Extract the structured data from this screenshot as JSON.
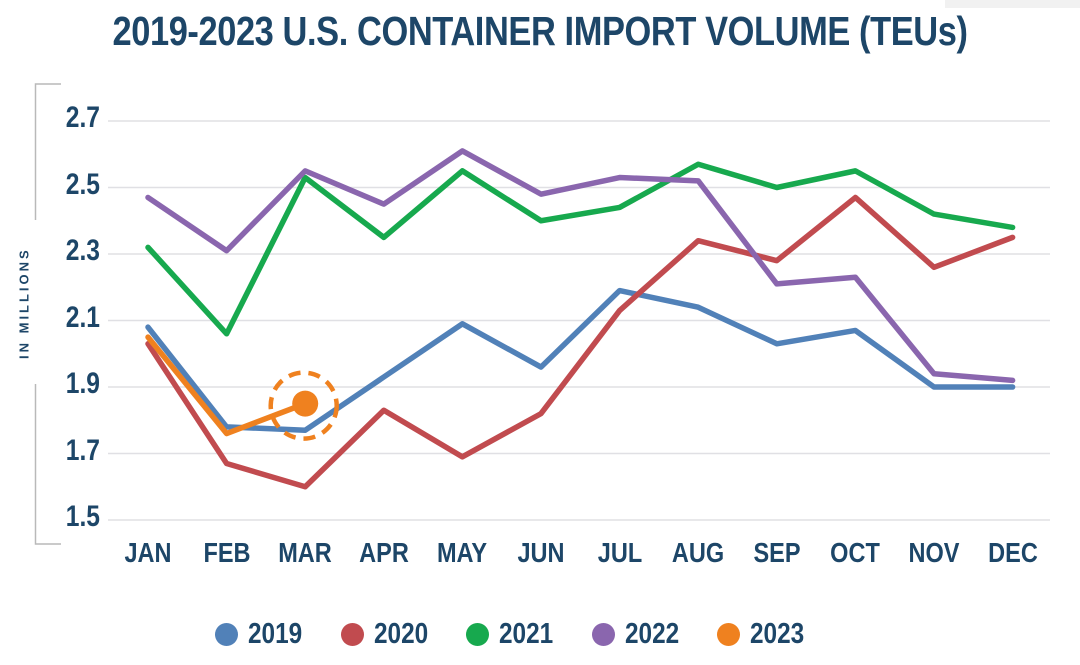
{
  "page": {
    "background": "#FFFFFF",
    "top_right_strip_color": "#F1F1F1"
  },
  "chart_data": {
    "type": "line",
    "title": "2019-2023 U.S. CONTAINER IMPORT VOLUME (TEUs)",
    "ylabel": "IN MILLIONS",
    "xlabel": "",
    "categories": [
      "JAN",
      "FEB",
      "MAR",
      "APR",
      "MAY",
      "JUN",
      "JUL",
      "AUG",
      "SEP",
      "OCT",
      "NOV",
      "DEC"
    ],
    "ytick_labels": [
      "2.7",
      "2.5",
      "2.3",
      "2.1",
      "1.9",
      "1.7",
      "1.5"
    ],
    "ylim": [
      1.5,
      2.7
    ],
    "grid": "horizontal-only",
    "legend_position": "bottom",
    "colors": {
      "text": "#1D4668",
      "gridline": "#E0E0E4",
      "axis_bracket": "#B9B9B9"
    },
    "series": [
      {
        "name": "2019",
        "color": "#5181B8",
        "values": [
          2.08,
          1.78,
          1.77,
          1.93,
          2.09,
          1.96,
          2.19,
          2.14,
          2.03,
          2.07,
          1.9,
          1.9
        ]
      },
      {
        "name": "2020",
        "color": "#C14B4F",
        "values": [
          2.03,
          1.67,
          1.6,
          1.83,
          1.69,
          1.82,
          2.13,
          2.34,
          2.28,
          2.47,
          2.26,
          2.35
        ]
      },
      {
        "name": "2021",
        "color": "#17A94E",
        "values": [
          2.32,
          2.06,
          2.53,
          2.35,
          2.55,
          2.4,
          2.44,
          2.57,
          2.5,
          2.55,
          2.42,
          2.38
        ]
      },
      {
        "name": "2022",
        "color": "#8A66AE",
        "values": [
          2.47,
          2.31,
          2.55,
          2.45,
          2.61,
          2.48,
          2.53,
          2.52,
          2.21,
          2.23,
          1.94,
          1.92
        ]
      },
      {
        "name": "2023",
        "color": "#EF811F",
        "values": [
          2.05,
          1.76,
          1.85
        ],
        "partial_year": true,
        "highlight_last_point": true,
        "highlight_style": "dashed-circle",
        "highlight_month": "MAR"
      }
    ]
  }
}
